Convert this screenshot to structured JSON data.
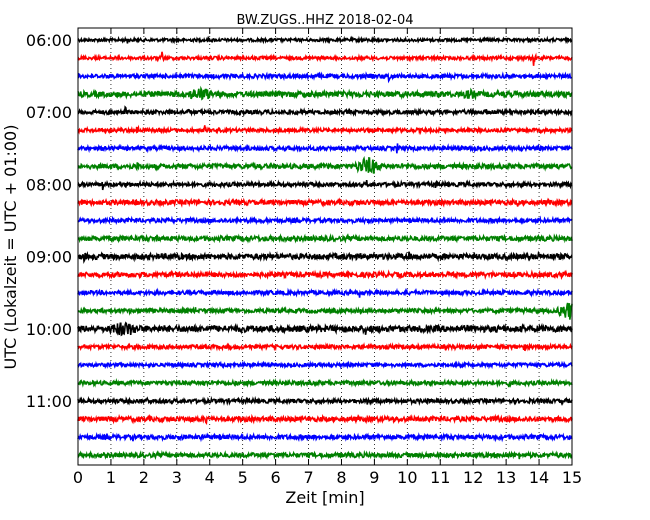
{
  "chart_data": {
    "type": "line",
    "title": "BW.ZUGS..HHZ 2018-02-04",
    "xlabel": "Zeit  [min]",
    "ylabel": "UTC (Lokalzeit = UTC + 01:00)",
    "xlim": [
      0,
      15
    ],
    "x_ticks": [
      "0",
      "1",
      "2",
      "3",
      "4",
      "5",
      "6",
      "7",
      "8",
      "9",
      "10",
      "11",
      "12",
      "13",
      "14",
      "15"
    ],
    "y_tick_labels": [
      "06:00",
      "07:00",
      "08:00",
      "09:00",
      "10:00",
      "11:00"
    ],
    "grid": "vertical dotted at each minute",
    "trace_colors": [
      "#000000",
      "#ff0000",
      "#0000ff",
      "#008000"
    ],
    "traces": [
      {
        "start": "06:00",
        "noise": 0.18,
        "events": [
          {
            "t": 1.5,
            "a": 0.7
          },
          {
            "t": 8.6,
            "a": 0.5
          },
          {
            "t": 13.7,
            "a": 0.4
          }
        ]
      },
      {
        "start": "06:15",
        "noise": 0.2,
        "events": [
          {
            "t": 2.55,
            "a": 0.9
          },
          {
            "t": 13.85,
            "a": 1.1
          }
        ]
      },
      {
        "start": "06:30",
        "noise": 0.25,
        "events": [
          {
            "t": 3.2,
            "a": 0.5
          },
          {
            "t": 9.45,
            "a": 0.9
          }
        ]
      },
      {
        "start": "06:45",
        "noise": 0.35,
        "events": [
          {
            "t": 3.1,
            "a": 0.8,
            "dur": 1.2
          },
          {
            "t": 11.5,
            "a": 0.6,
            "dur": 0.8
          },
          {
            "t": 9.7,
            "a": 0.4
          }
        ]
      },
      {
        "start": "07:00",
        "noise": 0.25,
        "events": [
          {
            "t": 1.45,
            "a": 0.7
          },
          {
            "t": 3.35,
            "a": 0.6
          },
          {
            "t": 12.4,
            "a": 0.5
          }
        ]
      },
      {
        "start": "07:15",
        "noise": 0.22,
        "events": [
          {
            "t": 1.8,
            "a": 0.8
          },
          {
            "t": 3.85,
            "a": 0.8
          }
        ]
      },
      {
        "start": "07:30",
        "noise": 0.25,
        "events": [
          {
            "t": 0.95,
            "a": 0.5
          },
          {
            "t": 9.7,
            "a": 0.7
          },
          {
            "t": 11.9,
            "a": 0.4
          }
        ]
      },
      {
        "start": "07:45",
        "noise": 0.3,
        "events": [
          {
            "t": 1.8,
            "a": 0.6
          },
          {
            "t": 8.3,
            "a": 1.1,
            "dur": 1.0
          },
          {
            "t": 7.6,
            "a": 0.5
          }
        ]
      },
      {
        "start": "08:00",
        "noise": 0.25,
        "events": [
          {
            "t": 0.75,
            "a": 0.7
          },
          {
            "t": 8.75,
            "a": 0.9
          },
          {
            "t": 10.85,
            "a": 0.7
          }
        ]
      },
      {
        "start": "08:15",
        "noise": 0.3,
        "events": [
          {
            "t": 3.3,
            "a": 0.6
          },
          {
            "t": 13.35,
            "a": 0.8
          },
          {
            "t": 7.4,
            "a": 0.4
          }
        ]
      },
      {
        "start": "08:30",
        "noise": 0.25,
        "events": [
          {
            "t": 8.8,
            "a": 0.7
          },
          {
            "t": 1.8,
            "a": 0.4
          }
        ]
      },
      {
        "start": "08:45",
        "noise": 0.3,
        "events": [
          {
            "t": 2.4,
            "a": 0.5
          },
          {
            "t": 6.9,
            "a": 0.4
          }
        ]
      },
      {
        "start": "09:00",
        "noise": 0.35,
        "events": [
          {
            "t": 0.2,
            "a": 0.8
          },
          {
            "t": 10.05,
            "a": 1.0
          },
          {
            "t": 14.0,
            "a": 0.5
          }
        ]
      },
      {
        "start": "09:15",
        "noise": 0.3,
        "events": [
          {
            "t": 3.5,
            "a": 0.6
          },
          {
            "t": 14.7,
            "a": 0.8
          }
        ]
      },
      {
        "start": "09:30",
        "noise": 0.25,
        "events": [
          {
            "t": 8.55,
            "a": 0.7
          },
          {
            "t": 2.6,
            "a": 0.3
          }
        ]
      },
      {
        "start": "09:45",
        "noise": 0.25,
        "events": [
          {
            "t": 3.55,
            "a": 0.7
          },
          {
            "t": 14.45,
            "a": 1.2,
            "dur": 1.1
          }
        ]
      },
      {
        "start": "10:00",
        "noise": 0.4,
        "events": [
          {
            "t": 0.75,
            "a": 0.9,
            "dur": 1.3
          },
          {
            "t": 8.75,
            "a": 0.9
          }
        ]
      },
      {
        "start": "10:15",
        "noise": 0.25,
        "events": [
          {
            "t": 3.75,
            "a": 0.7
          },
          {
            "t": 13.55,
            "a": 0.8
          }
        ]
      },
      {
        "start": "10:30",
        "noise": 0.22,
        "events": [
          {
            "t": 8.95,
            "a": 0.6
          }
        ]
      },
      {
        "start": "10:45",
        "noise": 0.25,
        "events": [
          {
            "t": 3.85,
            "a": 0.7
          },
          {
            "t": 13.1,
            "a": 0.6
          }
        ]
      },
      {
        "start": "11:00",
        "noise": 0.25,
        "events": [
          {
            "t": 2.1,
            "a": 0.6
          },
          {
            "t": 8.8,
            "a": 0.8
          },
          {
            "t": 10.6,
            "a": 0.5
          }
        ]
      },
      {
        "start": "11:15",
        "noise": 0.3,
        "events": [
          {
            "t": 3.9,
            "a": 0.7
          },
          {
            "t": 12.5,
            "a": 0.4
          }
        ]
      },
      {
        "start": "11:30",
        "noise": 0.28,
        "events": [
          {
            "t": 1.65,
            "a": 0.8
          },
          {
            "t": 10.0,
            "a": 0.7
          }
        ]
      },
      {
        "start": "11:45",
        "noise": 0.28,
        "events": [
          {
            "t": 3.9,
            "a": 0.8
          },
          {
            "t": 13.4,
            "a": 0.5
          }
        ]
      }
    ]
  }
}
